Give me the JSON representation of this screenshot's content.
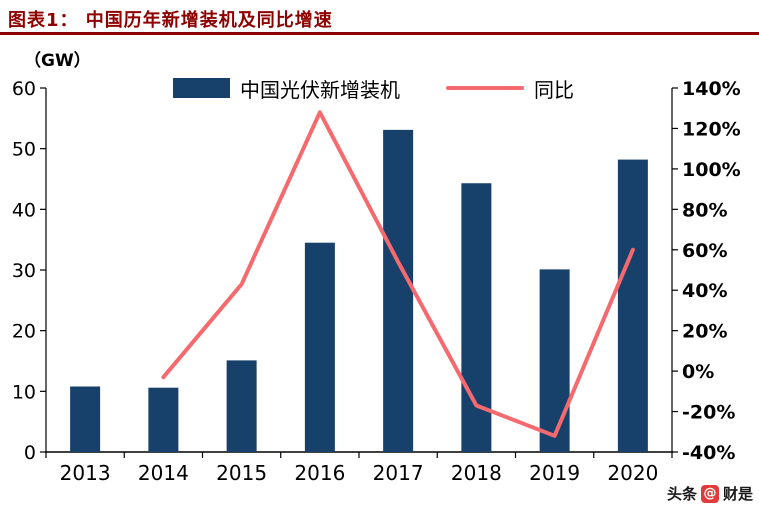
{
  "header": {
    "title": "图表1：  中国历年新增装机及同比增速"
  },
  "legend": {
    "bars": "中国光伏新增装机",
    "line": "同比"
  },
  "watermark": {
    "prefix": "头条",
    "at": "@",
    "name": "财是"
  },
  "colors": {
    "bar": "#17406b",
    "line": "#f56a6e",
    "title": "#8e0000"
  },
  "chart_data": {
    "type": "bar+line",
    "title": "图表1：  中国历年新增装机及同比增速",
    "categories": [
      "2013",
      "2014",
      "2015",
      "2016",
      "2017",
      "2018",
      "2019",
      "2020"
    ],
    "series": [
      {
        "name": "中国光伏新增装机",
        "type": "bar",
        "axis": "left",
        "values": [
          10.8,
          10.6,
          15.1,
          34.5,
          53.1,
          44.3,
          30.1,
          48.2
        ]
      },
      {
        "name": "同比",
        "type": "line",
        "axis": "right",
        "values": [
          null,
          -3,
          43,
          128,
          54,
          -17,
          -32,
          60
        ]
      }
    ],
    "left_axis": {
      "label": "（GW）",
      "min": 0,
      "max": 60,
      "step": 10,
      "ticks": [
        "0",
        "10",
        "20",
        "30",
        "40",
        "50",
        "60"
      ]
    },
    "right_axis": {
      "min": -40,
      "max": 140,
      "step": 20,
      "ticks": [
        "-40%",
        "-20%",
        "0%",
        "20%",
        "40%",
        "60%",
        "80%",
        "100%",
        "120%",
        "140%"
      ]
    },
    "grid": false,
    "legend_position": "top"
  }
}
